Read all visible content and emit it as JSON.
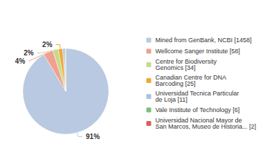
{
  "chart_data": {
    "type": "pie",
    "categories": [
      "Mined from GenBank, NCBI [1458]",
      "Wellcome Sanger Institute [58]",
      "Centre for Biodiversity\nGenomics [34]",
      "Canadian Centre for DNA\nBarcoding [25]",
      "Universidad Tecnica Particular\nde Loja [11]",
      "Vale Institute of Technology [6]",
      "Universidad Nacional Mayor de\nSan Marcos, Museo de Historia... [2]"
    ],
    "values": [
      91.47,
      3.64,
      2.13,
      1.57,
      0.69,
      0.38,
      0.13
    ],
    "value_labels": [
      "91%",
      "4%",
      "2%",
      "2%",
      null,
      null,
      null
    ],
    "colors": [
      "#b8c9e1",
      "#f0a090",
      "#c8d98b",
      "#f0a830",
      "#a8c4dc",
      "#7cbf7c",
      "#d95f5f"
    ],
    "data_labels": true,
    "legend": "right"
  }
}
